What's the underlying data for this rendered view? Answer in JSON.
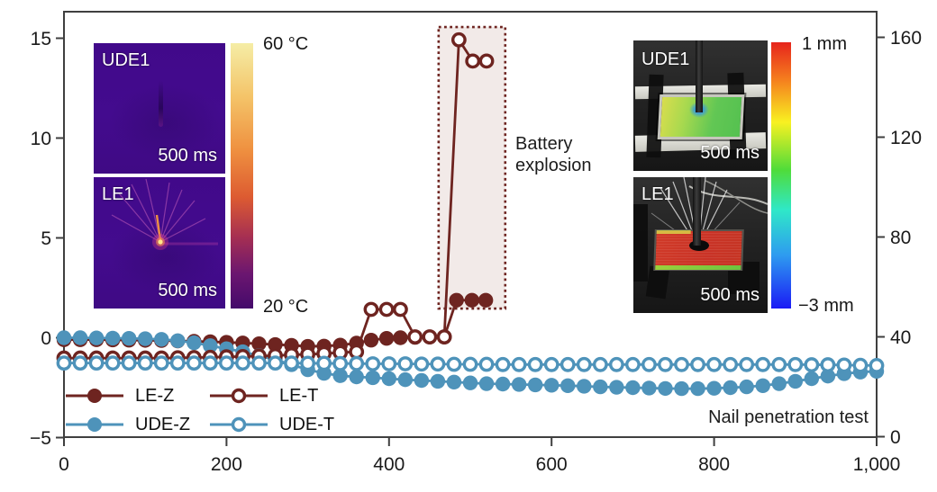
{
  "chart_data": {
    "type": "line-scatter",
    "title": "Nail penetration test",
    "x_axis": {
      "label": "",
      "range": [
        0,
        1000
      ],
      "tick_values": [
        0,
        200,
        400,
        600,
        800,
        1000
      ],
      "tick_labels": [
        "0",
        "200",
        "400",
        "600",
        "800",
        "1,000"
      ]
    },
    "y_axis_left": {
      "label": "",
      "units": "mm",
      "range": [
        -5.1,
        16.3
      ],
      "tick_values": [
        15,
        10,
        5,
        0,
        -5
      ],
      "tick_labels": [
        "15",
        "10",
        "5",
        "0",
        "−5"
      ]
    },
    "y_axis_right": {
      "label": "",
      "units": "°C",
      "range": [
        0,
        170.3
      ],
      "tick_values": [
        160,
        120,
        80,
        40,
        0
      ],
      "tick_labels": [
        "160",
        "120",
        "80",
        "40",
        "0"
      ]
    },
    "grid": false,
    "series": [
      {
        "name": "LE-Z",
        "axis": "left",
        "marker": "filled",
        "color": "#6E2420",
        "points": [
          [
            0,
            -0.1
          ],
          [
            20,
            -0.1
          ],
          [
            40,
            -0.1
          ],
          [
            60,
            -0.11
          ],
          [
            80,
            -0.12
          ],
          [
            100,
            -0.13
          ],
          [
            120,
            -0.14
          ],
          [
            140,
            -0.16
          ],
          [
            160,
            -0.18
          ],
          [
            180,
            -0.2
          ],
          [
            200,
            -0.23
          ],
          [
            220,
            -0.26
          ],
          [
            240,
            -0.3
          ],
          [
            260,
            -0.34
          ],
          [
            280,
            -0.38
          ],
          [
            300,
            -0.43
          ],
          [
            320,
            -0.42
          ],
          [
            340,
            -0.37
          ],
          [
            360,
            -0.27
          ],
          [
            378,
            -0.12
          ],
          [
            397,
            -0.03
          ],
          [
            414,
            0
          ],
          [
            432,
            0.02
          ],
          [
            450,
            0.03
          ],
          [
            468,
            0.03
          ],
          [
            483,
            1.88
          ],
          [
            502,
            1.88
          ],
          [
            519,
            1.88
          ]
        ]
      },
      {
        "name": "UDE-Z",
        "axis": "left",
        "marker": "filled",
        "color": "#4E93BA",
        "points": [
          [
            0,
            0
          ],
          [
            20,
            0
          ],
          [
            40,
            -0.01
          ],
          [
            60,
            -0.02
          ],
          [
            80,
            -0.03
          ],
          [
            100,
            -0.05
          ],
          [
            120,
            -0.08
          ],
          [
            140,
            -0.15
          ],
          [
            160,
            -0.25
          ],
          [
            180,
            -0.4
          ],
          [
            200,
            -0.55
          ],
          [
            220,
            -0.7
          ],
          [
            240,
            -0.9
          ],
          [
            260,
            -1.1
          ],
          [
            280,
            -1.35
          ],
          [
            300,
            -1.6
          ],
          [
            320,
            -1.78
          ],
          [
            340,
            -1.9
          ],
          [
            360,
            -1.96
          ],
          [
            380,
            -2.0
          ],
          [
            400,
            -2.05
          ],
          [
            420,
            -2.1
          ],
          [
            440,
            -2.14
          ],
          [
            460,
            -2.18
          ],
          [
            480,
            -2.22
          ],
          [
            500,
            -2.26
          ],
          [
            520,
            -2.3
          ],
          [
            540,
            -2.32
          ],
          [
            560,
            -2.34
          ],
          [
            580,
            -2.36
          ],
          [
            600,
            -2.38
          ],
          [
            620,
            -2.4
          ],
          [
            640,
            -2.43
          ],
          [
            660,
            -2.46
          ],
          [
            680,
            -2.48
          ],
          [
            700,
            -2.5
          ],
          [
            720,
            -2.52
          ],
          [
            740,
            -2.54
          ],
          [
            760,
            -2.55
          ],
          [
            780,
            -2.55
          ],
          [
            800,
            -2.53
          ],
          [
            820,
            -2.5
          ],
          [
            840,
            -2.46
          ],
          [
            860,
            -2.4
          ],
          [
            880,
            -2.3
          ],
          [
            900,
            -2.18
          ],
          [
            920,
            -2.05
          ],
          [
            940,
            -1.92
          ],
          [
            960,
            -1.8
          ],
          [
            980,
            -1.72
          ],
          [
            1000,
            -1.68
          ]
        ]
      },
      {
        "name": "LE-T",
        "axis": "right",
        "marker": "open",
        "color": "#6E2420",
        "points": [
          [
            0,
            31.5
          ],
          [
            20,
            31.5
          ],
          [
            40,
            31.5
          ],
          [
            60,
            31.5
          ],
          [
            80,
            31.5
          ],
          [
            100,
            31.5
          ],
          [
            120,
            31.5
          ],
          [
            140,
            31.6
          ],
          [
            160,
            31.7
          ],
          [
            180,
            31.8
          ],
          [
            200,
            32
          ],
          [
            220,
            32.1
          ],
          [
            240,
            32.3
          ],
          [
            260,
            32.5
          ],
          [
            280,
            32.8
          ],
          [
            300,
            33
          ],
          [
            320,
            33.3
          ],
          [
            340,
            33.7
          ],
          [
            360,
            34
          ],
          [
            378,
            51
          ],
          [
            397,
            51
          ],
          [
            414,
            51
          ],
          [
            432,
            40
          ],
          [
            450,
            40
          ],
          [
            468,
            40
          ],
          [
            486,
            159
          ],
          [
            503,
            150.5
          ],
          [
            520,
            150.5
          ]
        ]
      },
      {
        "name": "UDE-T",
        "axis": "right",
        "marker": "open",
        "color": "#4E93BA",
        "points": [
          [
            0,
            29.5
          ],
          [
            20,
            29.5
          ],
          [
            40,
            29.5
          ],
          [
            60,
            29.5
          ],
          [
            80,
            29.5
          ],
          [
            100,
            29.5
          ],
          [
            120,
            29.5
          ],
          [
            140,
            29.5
          ],
          [
            160,
            29.5
          ],
          [
            180,
            29.5
          ],
          [
            200,
            29.5
          ],
          [
            220,
            29.5
          ],
          [
            240,
            29.5
          ],
          [
            260,
            29.5
          ],
          [
            280,
            29.5
          ],
          [
            300,
            29.4
          ],
          [
            320,
            29.4
          ],
          [
            340,
            29.3
          ],
          [
            360,
            29.3
          ],
          [
            380,
            29.2
          ],
          [
            400,
            29.2
          ],
          [
            420,
            29.2
          ],
          [
            440,
            29.1
          ],
          [
            460,
            29.1
          ],
          [
            480,
            29.0
          ],
          [
            500,
            29.0
          ],
          [
            520,
            29.0
          ],
          [
            540,
            28.9
          ],
          [
            560,
            28.9
          ],
          [
            580,
            28.9
          ],
          [
            600,
            28.9
          ],
          [
            620,
            28.9
          ],
          [
            640,
            28.9
          ],
          [
            660,
            28.9
          ],
          [
            680,
            28.9
          ],
          [
            700,
            28.9
          ],
          [
            720,
            28.9
          ],
          [
            740,
            28.9
          ],
          [
            760,
            28.9
          ],
          [
            780,
            28.9
          ],
          [
            800,
            28.9
          ],
          [
            820,
            28.9
          ],
          [
            840,
            28.9
          ],
          [
            860,
            28.9
          ],
          [
            880,
            28.9
          ],
          [
            900,
            28.9
          ],
          [
            920,
            28.8
          ],
          [
            940,
            28.8
          ],
          [
            960,
            28.7
          ],
          [
            980,
            28.6
          ],
          [
            1000,
            28.5
          ]
        ]
      }
    ],
    "explosion_box": {
      "x_range": [
        461,
        543
      ],
      "mm_range": [
        1.46,
        15.56
      ]
    },
    "legend_position": "bottom-left"
  },
  "annotations": {
    "battery_explosion": "Battery\nexplosion",
    "nail_penetration": "Nail penetration test"
  },
  "legend": {
    "items": [
      {
        "label": "LE-Z",
        "series": "LE-Z"
      },
      {
        "label": "LE-T",
        "series": "LE-T"
      },
      {
        "label": "UDE-Z",
        "series": "UDE-Z"
      },
      {
        "label": "UDE-T",
        "series": "UDE-T"
      }
    ]
  },
  "insets": {
    "thermal": {
      "top_label": "UDE1",
      "bottom_label": "LE1",
      "timestamp": "500 ms",
      "colorbar_top": "60 °C",
      "colorbar_bottom": "20 °C"
    },
    "photo": {
      "top_label": "UDE1",
      "bottom_label": "LE1",
      "timestamp": "500 ms",
      "colorbar_top": "1 mm",
      "colorbar_bottom": "−3 mm"
    }
  },
  "colors": {
    "maroon": "#6E2420",
    "blue": "#4E93BA",
    "box_fill": "#F2EAE8",
    "axis": "#3F3F3F",
    "text": "#1A1A1A"
  }
}
